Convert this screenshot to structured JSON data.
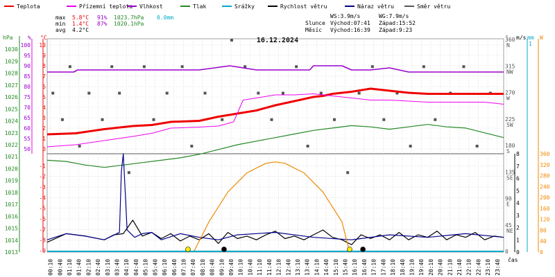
{
  "colors": {
    "temperature": "#ee0000",
    "dewpoint": "#ee00ee",
    "humidity": "#9900cc",
    "pressure": "#228822",
    "rain": "#00aacc",
    "wind_speed": "#000000",
    "gust": "#000088",
    "wind_direction": "#555555",
    "solar": "#ee8800"
  },
  "legend": [
    {
      "label": "Teplota",
      "color_key": "temperature"
    },
    {
      "label": "Přízemní teplota",
      "color_key": "dewpoint"
    },
    {
      "label": "Vlhkost",
      "color_key": "humidity"
    },
    {
      "label": "Tlak",
      "color_key": "pressure"
    },
    {
      "label": "Srážky",
      "color_key": "rain"
    },
    {
      "label": "Rychlost větru",
      "color_key": "wind_speed"
    },
    {
      "label": "Náraz větru",
      "color_key": "gust"
    },
    {
      "label": "Směr větru",
      "color_key": "wind_direction"
    }
  ],
  "stats": {
    "labels": {
      "max": "max",
      "min": "min",
      "avg": "avg"
    },
    "max": {
      "temp": "5.8°C",
      "hum": "91%",
      "press": "1023.7hPa",
      "rain": "0.0mm"
    },
    "min": {
      "temp": "1.4°C",
      "hum": "87%",
      "press": "1020.1hPa"
    },
    "avg": {
      "temp": "4.2°C"
    }
  },
  "info": {
    "ws": "WS:3.9m/s",
    "wg": "WG:7.9m/s",
    "sun_label": "Slunce",
    "sunrise": "Východ:07:41",
    "sunset": "Západ:15:52",
    "moon_label": "Měsíc",
    "moonrise": "Východ:16:39",
    "moonset": "Západ:9:23"
  },
  "chart_data": {
    "type": "line",
    "title": "16.12.2024",
    "xlabel": "čas",
    "x_ticks": [
      "00:10",
      "00:40",
      "01:10",
      "01:40",
      "02:10",
      "02:40",
      "03:10",
      "03:40",
      "04:10",
      "04:40",
      "05:10",
      "05:40",
      "06:10",
      "06:40",
      "07:10",
      "07:40",
      "08:10",
      "08:40",
      "09:10",
      "09:40",
      "10:10",
      "10:40",
      "11:10",
      "11:40",
      "12:10",
      "12:40",
      "13:10",
      "13:40",
      "14:10",
      "14:40",
      "15:10",
      "15:40",
      "16:10",
      "16:40",
      "17:10",
      "17:40",
      "18:10",
      "18:40",
      "19:10",
      "19:40",
      "20:10",
      "20:40",
      "21:10",
      "21:40",
      "22:10",
      "22:40",
      "23:10",
      "23:40"
    ],
    "axes": {
      "hpa": {
        "label": "hPa",
        "ticks": [
          1013,
          1014,
          1015,
          1016,
          1017,
          1018,
          1019,
          1020,
          1021,
          1022,
          1023,
          1024,
          1025,
          1026,
          1027,
          1028,
          1029,
          1030
        ],
        "range": [
          1013,
          1031
        ]
      },
      "percent": {
        "label": "%",
        "ticks": [
          50,
          55,
          60,
          65,
          70,
          75,
          80,
          85,
          90,
          95,
          100
        ],
        "range": [
          48,
          102
        ]
      },
      "temp_upper": {
        "label": "°C",
        "ticks": [
          0,
          1,
          2,
          3,
          4,
          5,
          6,
          7,
          8,
          9,
          10
        ],
        "range": [
          0,
          10
        ]
      },
      "temp_lower": {
        "ticks": [
          -1,
          -2,
          -3,
          -4,
          -5,
          -6,
          -7,
          -8,
          -9
        ],
        "range": [
          -9,
          0
        ]
      },
      "direction": {
        "label": "°",
        "ticks": [
          {
            "deg": "360",
            "dir": "N"
          },
          {
            "deg": "315",
            "dir": "NW"
          },
          {
            "deg": "270",
            "dir": "W"
          },
          {
            "deg": "225",
            "dir": "SW"
          },
          {
            "deg": "180",
            "dir": "S"
          },
          {
            "deg": "135",
            "dir": "SE"
          },
          {
            "deg": "90",
            "dir": "E"
          },
          {
            "deg": "45",
            "dir": "NE"
          },
          {
            "deg": "0",
            "dir": ""
          }
        ]
      },
      "wind": {
        "label": "m/s",
        "ticks": [
          0,
          1,
          2,
          3,
          4,
          5,
          6,
          7,
          8
        ],
        "range": [
          0,
          8
        ]
      },
      "rain": {
        "label": "mm",
        "top_value": 1
      },
      "solar": {
        "label": "W",
        "ticks": [
          0,
          40,
          80,
          120,
          160,
          200,
          240,
          280,
          320,
          360
        ],
        "range": [
          0,
          360
        ]
      }
    },
    "series": [
      {
        "name": "Teplota",
        "color_key": "temperature",
        "axis": "temp_upper",
        "x": [
          0,
          1.5,
          3,
          4.5,
          5.5,
          6.5,
          8,
          9,
          10,
          11,
          12,
          13,
          14,
          14.5,
          15,
          16,
          17,
          18,
          19,
          20,
          21,
          22,
          23,
          24
        ],
        "y": [
          1.4,
          1.5,
          1.9,
          2.2,
          2.3,
          2.6,
          2.7,
          3.1,
          3.4,
          3.7,
          4.2,
          4.6,
          5.0,
          5.1,
          5.3,
          5.5,
          5.8,
          5.6,
          5.4,
          5.3,
          5.3,
          5.3,
          5.3,
          5.3
        ]
      },
      {
        "name": "Přízemní teplota",
        "color_key": "dewpoint",
        "axis": "temp_upper",
        "x": [
          0,
          1.5,
          3,
          4.5,
          5.5,
          6.5,
          8,
          9,
          9.8,
          10.3,
          11,
          12,
          13,
          14,
          15,
          16,
          17,
          18,
          19,
          20,
          21,
          22,
          23,
          24
        ],
        "y": [
          0.2,
          0.4,
          0.8,
          1.2,
          1.5,
          2.0,
          2.1,
          2.2,
          2.6,
          4.7,
          4.9,
          5.2,
          5.2,
          5.3,
          5.1,
          4.9,
          4.7,
          4.7,
          4.6,
          4.5,
          4.5,
          4.5,
          4.5,
          4.3
        ]
      },
      {
        "name": "Vlhkost",
        "color_key": "humidity",
        "axis": "percent",
        "x": [
          0,
          1.4,
          1.6,
          4,
          5.5,
          7,
          8,
          9.6,
          11,
          12,
          13.2,
          13.8,
          14,
          15.5,
          16,
          17,
          18,
          19,
          22.5,
          24
        ],
        "y": [
          87,
          87,
          88,
          88,
          88,
          88,
          88,
          90,
          88,
          88,
          88,
          88,
          90,
          90,
          88,
          88,
          89,
          87,
          87,
          87
        ]
      },
      {
        "name": "Tlak",
        "color_key": "pressure",
        "axis": "hpa",
        "x": [
          0,
          1,
          2,
          3,
          4,
          5,
          6,
          7,
          8,
          9,
          10,
          11,
          12,
          13,
          14,
          15,
          16,
          17,
          18,
          19,
          20,
          21,
          22,
          23,
          24
        ],
        "y": [
          1020.7,
          1020.6,
          1020.3,
          1020.1,
          1020.3,
          1020.5,
          1020.7,
          1020.9,
          1021.2,
          1021.6,
          1022.0,
          1022.3,
          1022.6,
          1022.9,
          1023.2,
          1023.4,
          1023.6,
          1023.5,
          1023.3,
          1023.5,
          1023.7,
          1023.5,
          1023.4,
          1023.0,
          1022.6
        ]
      },
      {
        "name": "Rychlost větru",
        "color_key": "wind_speed",
        "axis": "wind",
        "x": [
          0,
          1,
          2,
          3,
          3.5,
          4,
          4.5,
          5,
          5.5,
          6,
          6.5,
          7,
          7.5,
          8,
          8.5,
          9,
          9.5,
          10,
          10.5,
          11,
          11.5,
          12,
          12.5,
          13,
          13.5,
          14,
          14.5,
          15,
          15.5,
          16,
          16.5,
          17,
          17.5,
          18,
          18.5,
          19,
          19.5,
          20,
          20.5,
          21,
          21.5,
          22,
          22.5,
          23,
          23.5,
          24
        ],
        "y": [
          0.8,
          1.5,
          1.3,
          1.0,
          1.4,
          1.5,
          2.6,
          1.3,
          1.6,
          1.1,
          1.5,
          0.9,
          1.3,
          1.0,
          1.5,
          0.7,
          1.6,
          1.1,
          1.3,
          1.0,
          1.4,
          1.7,
          1.1,
          1.3,
          1.0,
          1.4,
          1.8,
          1.2,
          1.0,
          0.6,
          1.4,
          1.1,
          1.4,
          1.0,
          1.6,
          1.0,
          1.4,
          1.2,
          1.7,
          1.0,
          1.4,
          1.2,
          1.6,
          1.0,
          1.3,
          1.2
        ]
      },
      {
        "name": "Náraz větru",
        "color_key": "gust",
        "axis": "wind",
        "x": [
          0,
          1,
          2,
          3,
          3.8,
          3.9,
          4.0,
          4.1,
          4.2,
          4.4,
          4.6,
          5,
          5.5,
          6,
          7,
          8,
          9,
          10,
          12,
          14,
          16,
          18,
          20,
          22,
          24
        ],
        "y": [
          1.0,
          1.5,
          1.3,
          1.0,
          1.6,
          6.5,
          8.0,
          5.0,
          1.8,
          1.5,
          1.2,
          1.5,
          1.6,
          1.0,
          1.5,
          1.2,
          1.0,
          1.4,
          1.6,
          1.2,
          1.0,
          1.4,
          1.2,
          1.5,
          1.2
        ]
      },
      {
        "name": "Solar",
        "color_key": "solar",
        "axis": "solar",
        "x": [
          7.7,
          8.5,
          9.5,
          10.5,
          11.5,
          12,
          12.5,
          13.5,
          14.5,
          15.5,
          15.9
        ],
        "y": [
          0,
          110,
          220,
          290,
          325,
          330,
          325,
          290,
          220,
          110,
          0
        ]
      }
    ],
    "wind_direction_points": {
      "hours": [
        0.3,
        0.8,
        1.2,
        1.7,
        2.2,
        2.9,
        3.4,
        3.8,
        4.3,
        5.1,
        5.6,
        6.3,
        7.1,
        7.6,
        8.3,
        9.2,
        9.7,
        10.4,
        11.1,
        11.8,
        12.4,
        13.1,
        13.7,
        14.4,
        15.1,
        15.8,
        16.4,
        17.1,
        17.7,
        18.4,
        19.1,
        19.8,
        20.4,
        21.2,
        21.9,
        22.6,
        23.3
      ],
      "degrees": [
        270,
        225,
        315,
        180,
        270,
        225,
        315,
        270,
        135,
        315,
        225,
        270,
        315,
        180,
        270,
        225,
        360,
        315,
        270,
        225,
        270,
        315,
        180,
        270,
        225,
        135,
        270,
        315,
        225,
        270,
        180,
        315,
        225,
        270,
        315,
        180,
        270
      ]
    },
    "moon_markers": [
      {
        "hour": 7.4,
        "fill": "#ffee00"
      },
      {
        "hour": 9.3,
        "fill": "#000000"
      },
      {
        "hour": 15.9,
        "fill": "#ffee00"
      },
      {
        "hour": 16.6,
        "fill": "#000000"
      }
    ]
  }
}
